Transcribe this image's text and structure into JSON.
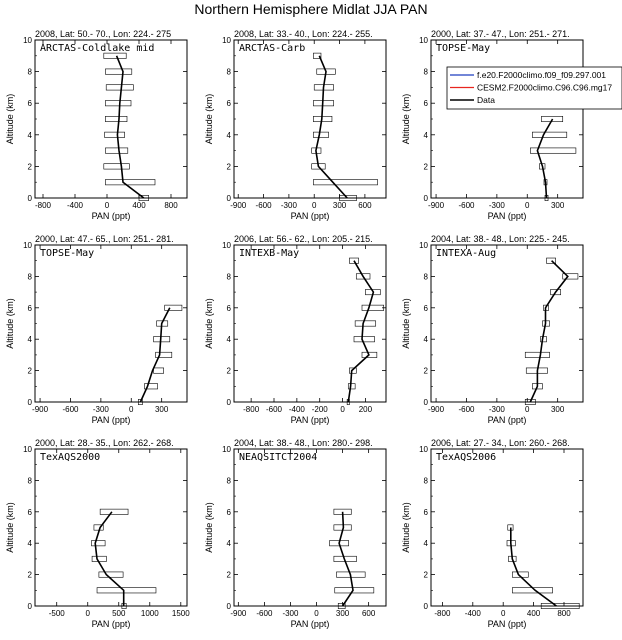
{
  "title": "Northern Hemisphere Midlat JJA PAN",
  "legend": {
    "entries": [
      {
        "label": "f.e20.F2000climo.f09_f09.297.001",
        "color": "#1f3fbf"
      },
      {
        "label": "CESM2.F2000climo.C96.C96.mg17",
        "color": "#e8251f"
      },
      {
        "label": "Data",
        "color": "#000000"
      }
    ]
  },
  "chart_data": [
    {
      "type": "line",
      "header": "2008, Lat:  50.- 70., Lon: 224.- 275",
      "campaign": "ARCTAS-Coldlake mid",
      "xlabel": "PAN (ppt)",
      "ylabel": "Altitude (km)",
      "xlim": [
        -900,
        1000
      ],
      "ylim": [
        0,
        10
      ],
      "xticks": [
        -800,
        -400,
        0,
        400,
        800
      ],
      "yticks": [
        0,
        2,
        4,
        6,
        8,
        10
      ],
      "altitude": [
        0,
        1,
        2,
        3,
        4,
        5,
        6,
        7,
        8,
        9
      ],
      "pan": [
        460,
        200,
        180,
        150,
        130,
        150,
        160,
        180,
        200,
        120
      ],
      "spread": [
        [
          400,
          520
        ],
        [
          -20,
          600
        ],
        [
          -40,
          280
        ],
        [
          -20,
          260
        ],
        [
          -30,
          220
        ],
        [
          -20,
          250
        ],
        [
          -20,
          300
        ],
        [
          -10,
          330
        ],
        [
          -20,
          310
        ],
        [
          -40,
          240
        ]
      ]
    },
    {
      "type": "line",
      "header": "2008, Lat:  33.- 40., Lon: 224.- 255.",
      "campaign": "ARCTAS-Carb",
      "xlabel": "PAN (ppt)",
      "ylabel": "Altitude (km)",
      "xlim": [
        -950,
        850
      ],
      "ylim": [
        0,
        10
      ],
      "xticks": [
        -900,
        -600,
        -300,
        0,
        300,
        600
      ],
      "yticks": [
        0,
        2,
        4,
        6,
        8,
        10
      ],
      "altitude": [
        0,
        1,
        2,
        3,
        4,
        5,
        6,
        7,
        8,
        9
      ],
      "pan": [
        390,
        220,
        50,
        20,
        60,
        90,
        100,
        110,
        140,
        60
      ],
      "spread": [
        [
          300,
          500
        ],
        [
          -10,
          750
        ],
        [
          -30,
          130
        ],
        [
          -30,
          80
        ],
        [
          -10,
          170
        ],
        [
          -10,
          210
        ],
        [
          -10,
          230
        ],
        [
          0,
          230
        ],
        [
          30,
          250
        ],
        [
          -10,
          80
        ]
      ]
    },
    {
      "type": "line",
      "header": "2000, Lat:  37.- 47., Lon: 251.- 271.",
      "campaign": "TOPSE-May",
      "xlabel": "PAN (ppt)",
      "ylabel": "Altitude (km)",
      "xlim": [
        -950,
        550
      ],
      "ylim": [
        0,
        10
      ],
      "xticks": [
        -900,
        -600,
        -300,
        0,
        300
      ],
      "yticks": [
        0,
        2,
        4,
        6,
        8,
        10
      ],
      "altitude": [
        0,
        1,
        2,
        3,
        4,
        5
      ],
      "pan": [
        190,
        180,
        150,
        100,
        160,
        250
      ],
      "spread": [
        [
          175,
          205
        ],
        [
          165,
          195
        ],
        [
          120,
          175
        ],
        [
          30,
          480
        ],
        [
          50,
          390
        ],
        [
          140,
          350
        ]
      ]
    },
    {
      "type": "line",
      "header": "2000, Lat:  47.- 65., Lon: 251.- 281.",
      "campaign": "TOPSE-May",
      "xlabel": "PAN (ppt)",
      "ylabel": "Altitude (km)",
      "xlim": [
        -950,
        550
      ],
      "ylim": [
        0,
        10
      ],
      "xticks": [
        -900,
        -600,
        -300,
        0,
        300
      ],
      "yticks": [
        0,
        2,
        4,
        6,
        8,
        10
      ],
      "altitude": [
        0,
        1,
        2,
        3,
        4,
        5,
        6
      ],
      "pan": [
        90,
        160,
        210,
        280,
        290,
        300,
        380
      ],
      "spread": [
        [
          70,
          110
        ],
        [
          130,
          260
        ],
        [
          220,
          320
        ],
        [
          240,
          400
        ],
        [
          220,
          380
        ],
        [
          250,
          360
        ],
        [
          330,
          500
        ]
      ]
    },
    {
      "type": "line",
      "header": "2006, Lat:  56.- 62., Lon: 205.- 215.",
      "campaign": "INTEXB-May",
      "xlabel": "PAN (ppt)",
      "ylabel": "Altitude (km)",
      "xlim": [
        -950,
        380
      ],
      "ylim": [
        0,
        10
      ],
      "xticks": [
        -800,
        -600,
        -400,
        -200,
        0,
        200
      ],
      "yticks": [
        0,
        2,
        4,
        6,
        8,
        10
      ],
      "altitude": [
        0,
        1,
        2,
        3,
        4,
        5,
        6,
        7,
        8,
        9
      ],
      "pan": [
        50,
        70,
        80,
        230,
        170,
        180,
        230,
        270,
        180,
        100
      ],
      "spread": [
        [
          40,
          60
        ],
        [
          50,
          110
        ],
        [
          60,
          120
        ],
        [
          170,
          300
        ],
        [
          100,
          280
        ],
        [
          110,
          290
        ],
        [
          170,
          360
        ],
        [
          200,
          330
        ],
        [
          120,
          240
        ],
        [
          60,
          140
        ]
      ]
    },
    {
      "type": "line",
      "header": "2004, Lat:  38.- 48., Lon: 225.- 245.",
      "campaign": "INTEXA-Aug",
      "xlabel": "PAN (ppt)",
      "ylabel": "Altitude (km)",
      "xlim": [
        -950,
        550
      ],
      "ylim": [
        0,
        10
      ],
      "xticks": [
        -900,
        -600,
        -300,
        0,
        300
      ],
      "yticks": [
        0,
        2,
        4,
        6,
        8,
        10
      ],
      "altitude": [
        0,
        1,
        2,
        3,
        4,
        5,
        6,
        7,
        8,
        9
      ],
      "pan": [
        30,
        100,
        100,
        130,
        150,
        180,
        180,
        280,
        400,
        240
      ],
      "spread": [
        [
          -20,
          80
        ],
        [
          50,
          150
        ],
        [
          -10,
          200
        ],
        [
          -20,
          220
        ],
        [
          130,
          190
        ],
        [
          150,
          220
        ],
        [
          160,
          210
        ],
        [
          230,
          330
        ],
        [
          350,
          500
        ],
        [
          190,
          280
        ]
      ]
    },
    {
      "type": "line",
      "header": "2000, Lat:  28.- 35., Lon: 262.- 268.",
      "campaign": "TexAQS2000",
      "xlabel": "PAN (ppt)",
      "ylabel": "Altitude (km)",
      "xlim": [
        -850,
        1600
      ],
      "ylim": [
        0,
        10
      ],
      "xticks": [
        -500,
        0,
        500,
        1000,
        1500
      ],
      "yticks": [
        0,
        2,
        4,
        6,
        8,
        10
      ],
      "altitude": [
        0,
        1,
        2,
        3,
        4,
        5,
        6
      ],
      "pan": [
        580,
        580,
        300,
        150,
        120,
        200,
        390
      ],
      "spread": [
        [
          550,
          620
        ],
        [
          150,
          1100
        ],
        [
          180,
          570
        ],
        [
          70,
          300
        ],
        [
          60,
          280
        ],
        [
          100,
          250
        ],
        [
          200,
          650
        ]
      ]
    },
    {
      "type": "line",
      "header": "2004, Lat:  38.- 48., Lon: 280.- 298.",
      "campaign": "NEAQSITCT2004",
      "xlabel": "PAN (ppt)",
      "ylabel": "Altitude (km)",
      "xlim": [
        -950,
        800
      ],
      "ylim": [
        0,
        10
      ],
      "xticks": [
        -900,
        -600,
        -300,
        0,
        300,
        600
      ],
      "yticks": [
        0,
        2,
        4,
        6,
        8,
        10
      ],
      "altitude": [
        0,
        1,
        2,
        3,
        4,
        5,
        6
      ],
      "pan": [
        300,
        420,
        390,
        320,
        260,
        310,
        300
      ],
      "spread": [
        [
          250,
          330
        ],
        [
          210,
          660
        ],
        [
          230,
          560
        ],
        [
          200,
          460
        ],
        [
          150,
          370
        ],
        [
          200,
          400
        ],
        [
          200,
          400
        ]
      ]
    },
    {
      "type": "line",
      "header": "2006, Lat:  27.- 34., Lon: 260.- 268.",
      "campaign": "TexAQS2006",
      "xlabel": "PAN (ppt)",
      "ylabel": "Altitude (km)",
      "xlim": [
        -950,
        1050
      ],
      "ylim": [
        0,
        10
      ],
      "xticks": [
        -800,
        -400,
        0,
        400,
        800
      ],
      "yticks": [
        0,
        2,
        4,
        6,
        8,
        10
      ],
      "altitude": [
        0,
        1,
        2,
        3,
        4,
        5
      ],
      "pan": [
        700,
        420,
        200,
        120,
        100,
        100
      ],
      "spread": [
        [
          500,
          1000
        ],
        [
          120,
          650
        ],
        [
          120,
          330
        ],
        [
          70,
          170
        ],
        [
          50,
          160
        ],
        [
          60,
          130
        ]
      ]
    }
  ]
}
